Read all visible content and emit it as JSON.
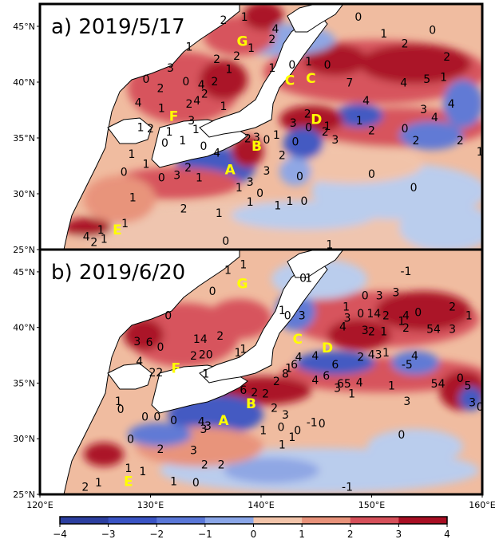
{
  "panels": [
    {
      "title": "a) 2019/5/17",
      "regions": [
        {
          "label": "A",
          "lon": 137.2,
          "lat": 32.1
        },
        {
          "label": "B",
          "lon": 139.6,
          "lat": 34.2
        },
        {
          "label": "C",
          "lon": 142.6,
          "lat": 40.1
        },
        {
          "label": "C",
          "lon": 144.5,
          "lat": 40.3
        },
        {
          "label": "D",
          "lon": 145.0,
          "lat": 36.6
        },
        {
          "label": "E",
          "lon": 127.0,
          "lat": 26.7
        },
        {
          "label": "F",
          "lon": 132.1,
          "lat": 36.9
        },
        {
          "label": "G",
          "lon": 138.3,
          "lat": 43.6
        }
      ],
      "contour_labels": [
        {
          "t": "1",
          "lon": 138.5,
          "lat": 45.8
        },
        {
          "t": "0",
          "lon": 148.8,
          "lat": 45.8
        },
        {
          "t": "2",
          "lon": 136.6,
          "lat": 45.5
        },
        {
          "t": "4",
          "lon": 141.3,
          "lat": 44.7
        },
        {
          "t": "2",
          "lon": 141.0,
          "lat": 43.8
        },
        {
          "t": "1",
          "lon": 151.1,
          "lat": 44.3
        },
        {
          "t": "0",
          "lon": 155.5,
          "lat": 44.6
        },
        {
          "t": "1",
          "lon": 133.5,
          "lat": 43.1
        },
        {
          "t": "2",
          "lon": 136.0,
          "lat": 42.0
        },
        {
          "t": "2",
          "lon": 137.8,
          "lat": 42.3
        },
        {
          "t": "1",
          "lon": 139.1,
          "lat": 43.0
        },
        {
          "t": "1",
          "lon": 141.0,
          "lat": 41.2
        },
        {
          "t": "0",
          "lon": 142.8,
          "lat": 41.5
        },
        {
          "t": "1",
          "lon": 144.3,
          "lat": 41.8
        },
        {
          "t": "0",
          "lon": 146.0,
          "lat": 41.5
        },
        {
          "t": "2",
          "lon": 153.0,
          "lat": 43.4
        },
        {
          "t": "2",
          "lon": 156.8,
          "lat": 42.2
        },
        {
          "t": "1",
          "lon": 156.5,
          "lat": 40.4
        },
        {
          "t": "3",
          "lon": 131.8,
          "lat": 41.2
        },
        {
          "t": "0",
          "lon": 129.6,
          "lat": 40.2
        },
        {
          "t": "0",
          "lon": 133.2,
          "lat": 40.0
        },
        {
          "t": "1",
          "lon": 137.1,
          "lat": 41.1
        },
        {
          "t": "2",
          "lon": 130.9,
          "lat": 39.4
        },
        {
          "t": "4",
          "lon": 134.6,
          "lat": 39.7
        },
        {
          "t": "2",
          "lon": 135.8,
          "lat": 40.0
        },
        {
          "t": "2",
          "lon": 134.9,
          "lat": 38.9
        },
        {
          "t": "2",
          "lon": 133.5,
          "lat": 38.0
        },
        {
          "t": "4",
          "lon": 134.2,
          "lat": 38.3
        },
        {
          "t": "1",
          "lon": 131.0,
          "lat": 37.6
        },
        {
          "t": "1",
          "lon": 136.6,
          "lat": 37.8
        },
        {
          "t": "4",
          "lon": 128.9,
          "lat": 38.1
        },
        {
          "t": "1",
          "lon": 129.1,
          "lat": 35.9
        },
        {
          "t": "2",
          "lon": 130.0,
          "lat": 35.8
        },
        {
          "t": "1",
          "lon": 131.7,
          "lat": 35.5
        },
        {
          "t": "1",
          "lon": 134.1,
          "lat": 35.7
        },
        {
          "t": "3",
          "lon": 133.7,
          "lat": 36.5
        },
        {
          "t": "0",
          "lon": 131.3,
          "lat": 34.5
        },
        {
          "t": "1",
          "lon": 132.9,
          "lat": 34.7
        },
        {
          "t": "2",
          "lon": 138.8,
          "lat": 34.9
        },
        {
          "t": "3",
          "lon": 139.6,
          "lat": 35.0
        },
        {
          "t": "0",
          "lon": 140.5,
          "lat": 34.8
        },
        {
          "t": "1",
          "lon": 141.4,
          "lat": 35.2
        },
        {
          "t": "0",
          "lon": 143.1,
          "lat": 34.6
        },
        {
          "t": "2",
          "lon": 145.8,
          "lat": 35.5
        },
        {
          "t": "3",
          "lon": 146.7,
          "lat": 34.8
        },
        {
          "t": "7",
          "lon": 148.0,
          "lat": 39.9
        },
        {
          "t": "4",
          "lon": 149.5,
          "lat": 38.3
        },
        {
          "t": "4",
          "lon": 152.9,
          "lat": 39.9
        },
        {
          "t": "5",
          "lon": 155.0,
          "lat": 40.2
        },
        {
          "t": "4",
          "lon": 157.2,
          "lat": 38.0
        },
        {
          "t": "3",
          "lon": 154.7,
          "lat": 37.5
        },
        {
          "t": "4",
          "lon": 155.7,
          "lat": 36.8
        },
        {
          "t": "1",
          "lon": 148.9,
          "lat": 36.5
        },
        {
          "t": "2",
          "lon": 150.0,
          "lat": 35.6
        },
        {
          "t": "0",
          "lon": 153.0,
          "lat": 35.8
        },
        {
          "t": "2",
          "lon": 154.0,
          "lat": 34.7
        },
        {
          "t": "2",
          "lon": 158.0,
          "lat": 34.7
        },
        {
          "t": "1",
          "lon": 159.8,
          "lat": 33.7
        },
        {
          "t": "2",
          "lon": 144.2,
          "lat": 37.1
        },
        {
          "t": "3",
          "lon": 142.9,
          "lat": 36.3
        },
        {
          "t": "0",
          "lon": 144.3,
          "lat": 35.9
        },
        {
          "t": "1",
          "lon": 146.0,
          "lat": 36.0
        },
        {
          "t": "2",
          "lon": 141.9,
          "lat": 33.4
        },
        {
          "t": "3",
          "lon": 140.5,
          "lat": 32.0
        },
        {
          "t": "4",
          "lon": 136.0,
          "lat": 33.6
        },
        {
          "t": "0",
          "lon": 134.8,
          "lat": 34.2
        },
        {
          "t": "2",
          "lon": 133.4,
          "lat": 32.3
        },
        {
          "t": "3",
          "lon": 132.4,
          "lat": 31.6
        },
        {
          "t": "0",
          "lon": 131.0,
          "lat": 31.4
        },
        {
          "t": "1",
          "lon": 128.3,
          "lat": 33.5
        },
        {
          "t": "0",
          "lon": 127.6,
          "lat": 31.9
        },
        {
          "t": "1",
          "lon": 129.6,
          "lat": 32.6
        },
        {
          "t": "1",
          "lon": 134.4,
          "lat": 31.4
        },
        {
          "t": "3",
          "lon": 139.0,
          "lat": 31.0
        },
        {
          "t": "1",
          "lon": 138.0,
          "lat": 30.5
        },
        {
          "t": "1",
          "lon": 128.4,
          "lat": 29.6
        },
        {
          "t": "2",
          "lon": 133.0,
          "lat": 28.6
        },
        {
          "t": "1",
          "lon": 136.2,
          "lat": 28.2
        },
        {
          "t": "1",
          "lon": 139.0,
          "lat": 29.2
        },
        {
          "t": "0",
          "lon": 139.9,
          "lat": 30.0
        },
        {
          "t": "1",
          "lon": 141.5,
          "lat": 28.9
        },
        {
          "t": "1",
          "lon": 142.6,
          "lat": 29.3
        },
        {
          "t": "0",
          "lon": 143.9,
          "lat": 29.3
        },
        {
          "t": "0",
          "lon": 143.5,
          "lat": 31.5
        },
        {
          "t": "0",
          "lon": 150.0,
          "lat": 31.7
        },
        {
          "t": "0",
          "lon": 153.8,
          "lat": 30.5
        },
        {
          "t": "1",
          "lon": 127.7,
          "lat": 27.3
        },
        {
          "t": "1",
          "lon": 125.8,
          "lat": 25.9
        },
        {
          "t": "4",
          "lon": 124.2,
          "lat": 26.1
        },
        {
          "t": "2",
          "lon": 124.9,
          "lat": 25.6
        },
        {
          "t": "1",
          "lon": 125.5,
          "lat": 26.7
        },
        {
          "t": "0",
          "lon": 136.8,
          "lat": 25.7
        },
        {
          "t": "1",
          "lon": 146.2,
          "lat": 25.4
        }
      ]
    },
    {
      "title": "b) 2019/6/20",
      "regions": [
        {
          "label": "A",
          "lon": 136.6,
          "lat": 31.6
        },
        {
          "label": "B",
          "lon": 139.1,
          "lat": 33.1
        },
        {
          "label": "C",
          "lon": 143.3,
          "lat": 38.9
        },
        {
          "label": "D",
          "lon": 146.0,
          "lat": 38.1
        },
        {
          "label": "E",
          "lon": 128.0,
          "lat": 26.1
        },
        {
          "label": "F",
          "lon": 132.3,
          "lat": 36.3
        },
        {
          "label": "G",
          "lon": 138.3,
          "lat": 43.9
        }
      ],
      "contour_labels": [
        {
          "t": "1",
          "lon": 138.4,
          "lat": 45.6
        },
        {
          "t": "1",
          "lon": 137.0,
          "lat": 45.1
        },
        {
          "t": "0",
          "lon": 143.8,
          "lat": 44.4
        },
        {
          "t": "1",
          "lon": 144.3,
          "lat": 44.4
        },
        {
          "t": "-1",
          "lon": 153.1,
          "lat": 45.0
        },
        {
          "t": "0",
          "lon": 135.6,
          "lat": 43.2
        },
        {
          "t": "0",
          "lon": 149.4,
          "lat": 42.8
        },
        {
          "t": "3",
          "lon": 150.7,
          "lat": 42.8
        },
        {
          "t": "3",
          "lon": 152.2,
          "lat": 43.1
        },
        {
          "t": "0",
          "lon": 131.6,
          "lat": 41.0
        },
        {
          "t": "1",
          "lon": 141.9,
          "lat": 41.5
        },
        {
          "t": "0",
          "lon": 142.4,
          "lat": 41.0
        },
        {
          "t": "3",
          "lon": 143.7,
          "lat": 41.0
        },
        {
          "t": "1",
          "lon": 147.7,
          "lat": 41.8
        },
        {
          "t": "3",
          "lon": 147.8,
          "lat": 40.8
        },
        {
          "t": "0",
          "lon": 149.0,
          "lat": 41.2
        },
        {
          "t": "14",
          "lon": 150.2,
          "lat": 41.2
        },
        {
          "t": "2",
          "lon": 151.3,
          "lat": 41.0
        },
        {
          "t": "1",
          "lon": 152.7,
          "lat": 40.5
        },
        {
          "t": "4",
          "lon": 153.1,
          "lat": 41.0
        },
        {
          "t": "0",
          "lon": 154.2,
          "lat": 41.3
        },
        {
          "t": "2",
          "lon": 157.3,
          "lat": 41.8
        },
        {
          "t": "1",
          "lon": 158.8,
          "lat": 41.0
        },
        {
          "t": "4",
          "lon": 147.4,
          "lat": 40.0
        },
        {
          "t": "3",
          "lon": 149.4,
          "lat": 39.7
        },
        {
          "t": "2",
          "lon": 150.0,
          "lat": 39.6
        },
        {
          "t": "1",
          "lon": 151.1,
          "lat": 39.6
        },
        {
          "t": "2",
          "lon": 153.1,
          "lat": 39.9
        },
        {
          "t": "54",
          "lon": 155.6,
          "lat": 39.8
        },
        {
          "t": "3",
          "lon": 157.3,
          "lat": 39.8
        },
        {
          "t": "3",
          "lon": 128.8,
          "lat": 38.7
        },
        {
          "t": "6",
          "lon": 129.9,
          "lat": 38.6
        },
        {
          "t": "0",
          "lon": 130.9,
          "lat": 38.2
        },
        {
          "t": "14",
          "lon": 134.5,
          "lat": 38.9
        },
        {
          "t": "2",
          "lon": 136.3,
          "lat": 39.2
        },
        {
          "t": "1",
          "lon": 138.4,
          "lat": 38.0
        },
        {
          "t": "2",
          "lon": 133.9,
          "lat": 37.4
        },
        {
          "t": "20",
          "lon": 135.0,
          "lat": 37.5
        },
        {
          "t": "1",
          "lon": 137.9,
          "lat": 37.7
        },
        {
          "t": "4",
          "lon": 129.0,
          "lat": 36.9
        },
        {
          "t": "22",
          "lon": 130.5,
          "lat": 35.9
        },
        {
          "t": "1",
          "lon": 135.0,
          "lat": 35.8
        },
        {
          "t": "4",
          "lon": 143.4,
          "lat": 37.3
        },
        {
          "t": "4",
          "lon": 144.9,
          "lat": 37.4
        },
        {
          "t": "2",
          "lon": 149.0,
          "lat": 37.3
        },
        {
          "t": "43",
          "lon": 150.3,
          "lat": 37.5
        },
        {
          "t": "1",
          "lon": 151.3,
          "lat": 37.7
        },
        {
          "t": "4",
          "lon": 153.9,
          "lat": 37.4
        },
        {
          "t": "1",
          "lon": 142.5,
          "lat": 36.3
        },
        {
          "t": "6",
          "lon": 143.0,
          "lat": 36.6
        },
        {
          "t": "-5",
          "lon": 153.2,
          "lat": 36.6
        },
        {
          "t": "6",
          "lon": 146.7,
          "lat": 36.6
        },
        {
          "t": "8",
          "lon": 142.2,
          "lat": 35.8
        },
        {
          "t": "2",
          "lon": 141.4,
          "lat": 35.1
        },
        {
          "t": "6",
          "lon": 145.9,
          "lat": 35.6
        },
        {
          "t": "4",
          "lon": 144.9,
          "lat": 35.2
        },
        {
          "t": "65",
          "lon": 147.5,
          "lat": 34.9
        },
        {
          "t": "4",
          "lon": 148.9,
          "lat": 35.0
        },
        {
          "t": "1",
          "lon": 151.8,
          "lat": 34.7
        },
        {
          "t": "54",
          "lon": 156.0,
          "lat": 34.9
        },
        {
          "t": "0",
          "lon": 158.0,
          "lat": 35.4
        },
        {
          "t": "5",
          "lon": 158.7,
          "lat": 34.7
        },
        {
          "t": "3",
          "lon": 146.9,
          "lat": 34.5
        },
        {
          "t": "1",
          "lon": 148.2,
          "lat": 34.0
        },
        {
          "t": "3",
          "lon": 153.2,
          "lat": 33.3
        },
        {
          "t": "6",
          "lon": 138.4,
          "lat": 34.3
        },
        {
          "t": "2",
          "lon": 139.4,
          "lat": 34.1
        },
        {
          "t": "2",
          "lon": 140.4,
          "lat": 34.0
        },
        {
          "t": "2",
          "lon": 141.2,
          "lat": 32.7
        },
        {
          "t": "3",
          "lon": 142.2,
          "lat": 32.1
        },
        {
          "t": "-1",
          "lon": 144.6,
          "lat": 31.4
        },
        {
          "t": "3",
          "lon": 159.1,
          "lat": 33.2
        },
        {
          "t": "0",
          "lon": 159.8,
          "lat": 32.8
        },
        {
          "t": "1",
          "lon": 127.1,
          "lat": 33.3
        },
        {
          "t": "0",
          "lon": 127.3,
          "lat": 32.6
        },
        {
          "t": "0",
          "lon": 129.5,
          "lat": 31.9
        },
        {
          "t": "0",
          "lon": 130.6,
          "lat": 31.9
        },
        {
          "t": "0",
          "lon": 132.1,
          "lat": 31.6
        },
        {
          "t": "4",
          "lon": 134.6,
          "lat": 31.5
        },
        {
          "t": "3",
          "lon": 135.2,
          "lat": 31.1
        },
        {
          "t": "3",
          "lon": 134.8,
          "lat": 30.8
        },
        {
          "t": "1",
          "lon": 140.2,
          "lat": 30.7
        },
        {
          "t": "0",
          "lon": 141.8,
          "lat": 31.0
        },
        {
          "t": "1",
          "lon": 142.8,
          "lat": 30.1
        },
        {
          "t": "0",
          "lon": 143.3,
          "lat": 30.7
        },
        {
          "t": "0",
          "lon": 145.5,
          "lat": 31.3
        },
        {
          "t": "1",
          "lon": 141.9,
          "lat": 29.4
        },
        {
          "t": "0",
          "lon": 128.2,
          "lat": 29.9
        },
        {
          "t": "2",
          "lon": 130.9,
          "lat": 29.0
        },
        {
          "t": "3",
          "lon": 133.9,
          "lat": 28.9
        },
        {
          "t": "0",
          "lon": 152.7,
          "lat": 30.3
        },
        {
          "t": "1",
          "lon": 128.0,
          "lat": 27.3
        },
        {
          "t": "2",
          "lon": 134.9,
          "lat": 27.6
        },
        {
          "t": "2",
          "lon": 136.4,
          "lat": 27.6
        },
        {
          "t": "1",
          "lon": 129.3,
          "lat": 27.0
        },
        {
          "t": "1",
          "lon": 132.1,
          "lat": 26.1
        },
        {
          "t": "0",
          "lon": 134.1,
          "lat": 26.0
        },
        {
          "t": "2",
          "lon": 124.1,
          "lat": 25.6
        },
        {
          "t": "1",
          "lon": 125.3,
          "lat": 26.0
        },
        {
          "t": "-1",
          "lon": 147.8,
          "lat": 25.6
        }
      ]
    }
  ],
  "axes": {
    "lon_ticks": [
      "120°E",
      "130°E",
      "140°E",
      "150°E",
      "160°E"
    ],
    "lat_ticks": [
      "25°N",
      "30°N",
      "35°N",
      "40°N",
      "45°N"
    ],
    "lon_range": [
      120,
      160
    ],
    "lat_range": [
      25,
      47
    ]
  },
  "colorbar": {
    "ticks": [
      "−4",
      "−3",
      "−2",
      "−1",
      "0",
      "1",
      "2",
      "3",
      "4"
    ],
    "range": [
      -4,
      4
    ],
    "colors": [
      "#2c3fa0",
      "#3a54c4",
      "#5a77d8",
      "#8aa6e8",
      "#b8cef2",
      "#f2c4aa",
      "#e8927a",
      "#d6505a",
      "#a80e23"
    ]
  }
}
